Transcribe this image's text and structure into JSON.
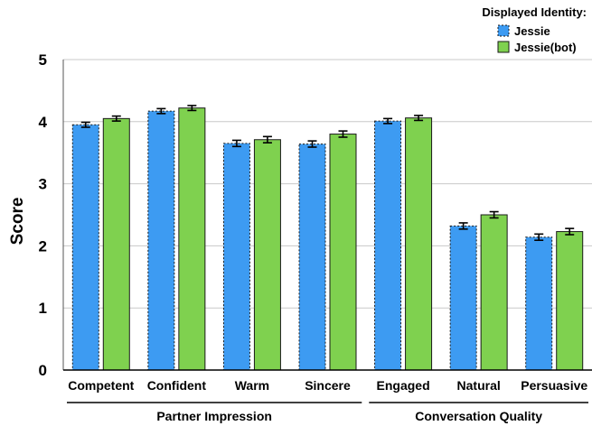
{
  "chart_data": {
    "type": "bar",
    "ylabel": "Score",
    "ylim": [
      0,
      5
    ],
    "yticks": [
      "0",
      "1",
      "2",
      "3",
      "4",
      "5"
    ],
    "grid": true,
    "categories": [
      "Competent",
      "Confident",
      "Warm",
      "Sincere",
      "Engaged",
      "Natural",
      "Persuasive"
    ],
    "groups": [
      {
        "label": "Partner Impression",
        "categories": [
          "Competent",
          "Confident",
          "Warm",
          "Sincere"
        ]
      },
      {
        "label": "Conversation Quality",
        "categories": [
          "Engaged",
          "Natural",
          "Persuasive"
        ]
      }
    ],
    "legend": {
      "title": "Displayed Identity:",
      "position": "top-right"
    },
    "series": [
      {
        "name": "Jessie",
        "color": "#3d9bf2",
        "border": "dashed",
        "values": [
          3.95,
          4.17,
          3.65,
          3.64,
          4.01,
          2.32,
          2.14
        ],
        "errors": [
          0.04,
          0.04,
          0.05,
          0.05,
          0.04,
          0.05,
          0.05
        ]
      },
      {
        "name": "Jessie(bot)",
        "color": "#7fd14f",
        "border": "solid",
        "values": [
          4.05,
          4.22,
          3.71,
          3.8,
          4.06,
          2.5,
          2.23
        ],
        "errors": [
          0.04,
          0.04,
          0.05,
          0.05,
          0.04,
          0.05,
          0.05
        ]
      }
    ]
  }
}
